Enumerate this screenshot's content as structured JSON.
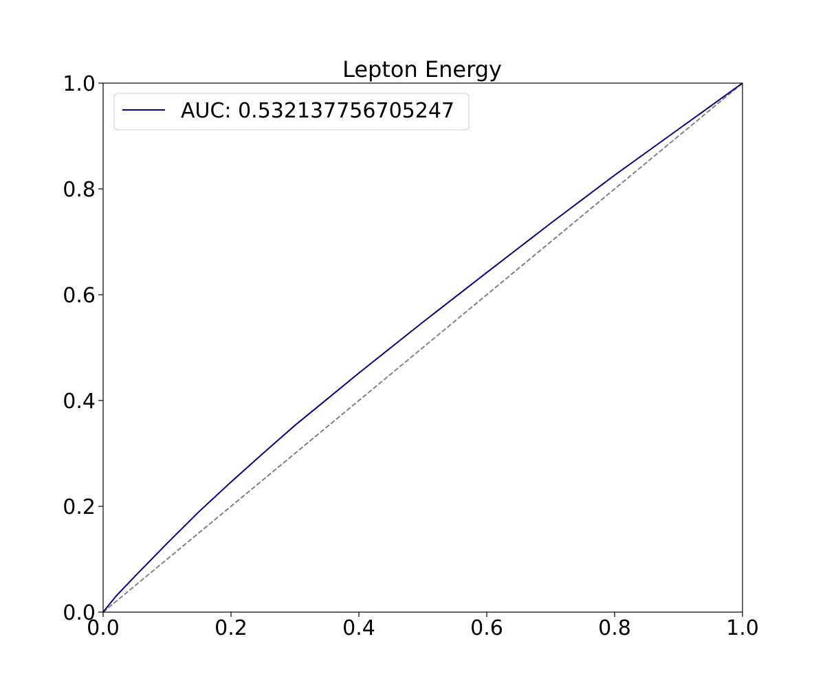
{
  "chart_data": {
    "type": "line",
    "title": "Lepton Energy",
    "xlabel": "",
    "ylabel": "",
    "xlim": [
      0.0,
      1.0
    ],
    "ylim": [
      0.0,
      1.0
    ],
    "x_ticks": [
      "0.0",
      "0.2",
      "0.4",
      "0.6",
      "0.8",
      "1.0"
    ],
    "y_ticks": [
      "0.0",
      "0.2",
      "0.4",
      "0.6",
      "0.8",
      "1.0"
    ],
    "grid": false,
    "legend_position": "top-left",
    "series": [
      {
        "name": "AUC: 0.532137756705247",
        "color": "#000080",
        "style": "solid",
        "x": [
          0.0,
          0.02,
          0.05,
          0.1,
          0.15,
          0.2,
          0.25,
          0.3,
          0.4,
          0.5,
          0.6,
          0.7,
          0.8,
          0.9,
          1.0
        ],
        "y": [
          0.0,
          0.03,
          0.068,
          0.13,
          0.19,
          0.246,
          0.3,
          0.353,
          0.452,
          0.548,
          0.642,
          0.735,
          0.826,
          0.913,
          1.0
        ]
      },
      {
        "color": "#808080",
        "style": "dashed",
        "x": [
          0.0,
          1.0
        ],
        "y": [
          0.0,
          1.0
        ]
      }
    ]
  }
}
